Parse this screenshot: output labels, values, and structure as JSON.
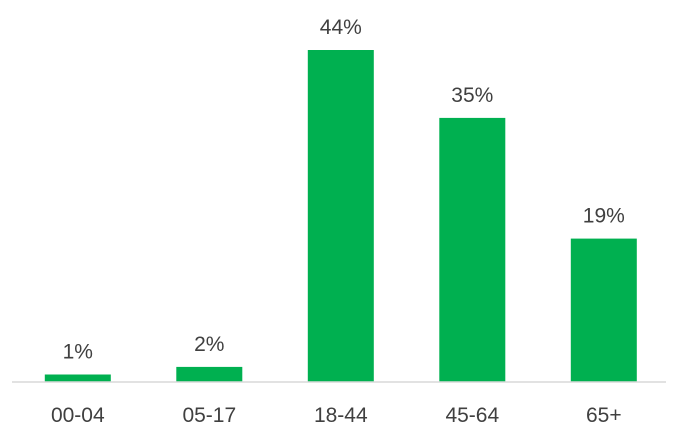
{
  "chart_data": {
    "type": "bar",
    "categories": [
      "00-04",
      "05-17",
      "18-44",
      "45-64",
      "65+"
    ],
    "values": [
      1,
      2,
      44,
      35,
      19
    ],
    "value_suffix": "%",
    "title": "",
    "xlabel": "",
    "ylabel": "",
    "ylim": [
      0,
      44
    ],
    "grid": false,
    "legend": "none",
    "bar_color": "#00B050",
    "axis_color": "#D9D9D9",
    "text_color": "#404040"
  }
}
